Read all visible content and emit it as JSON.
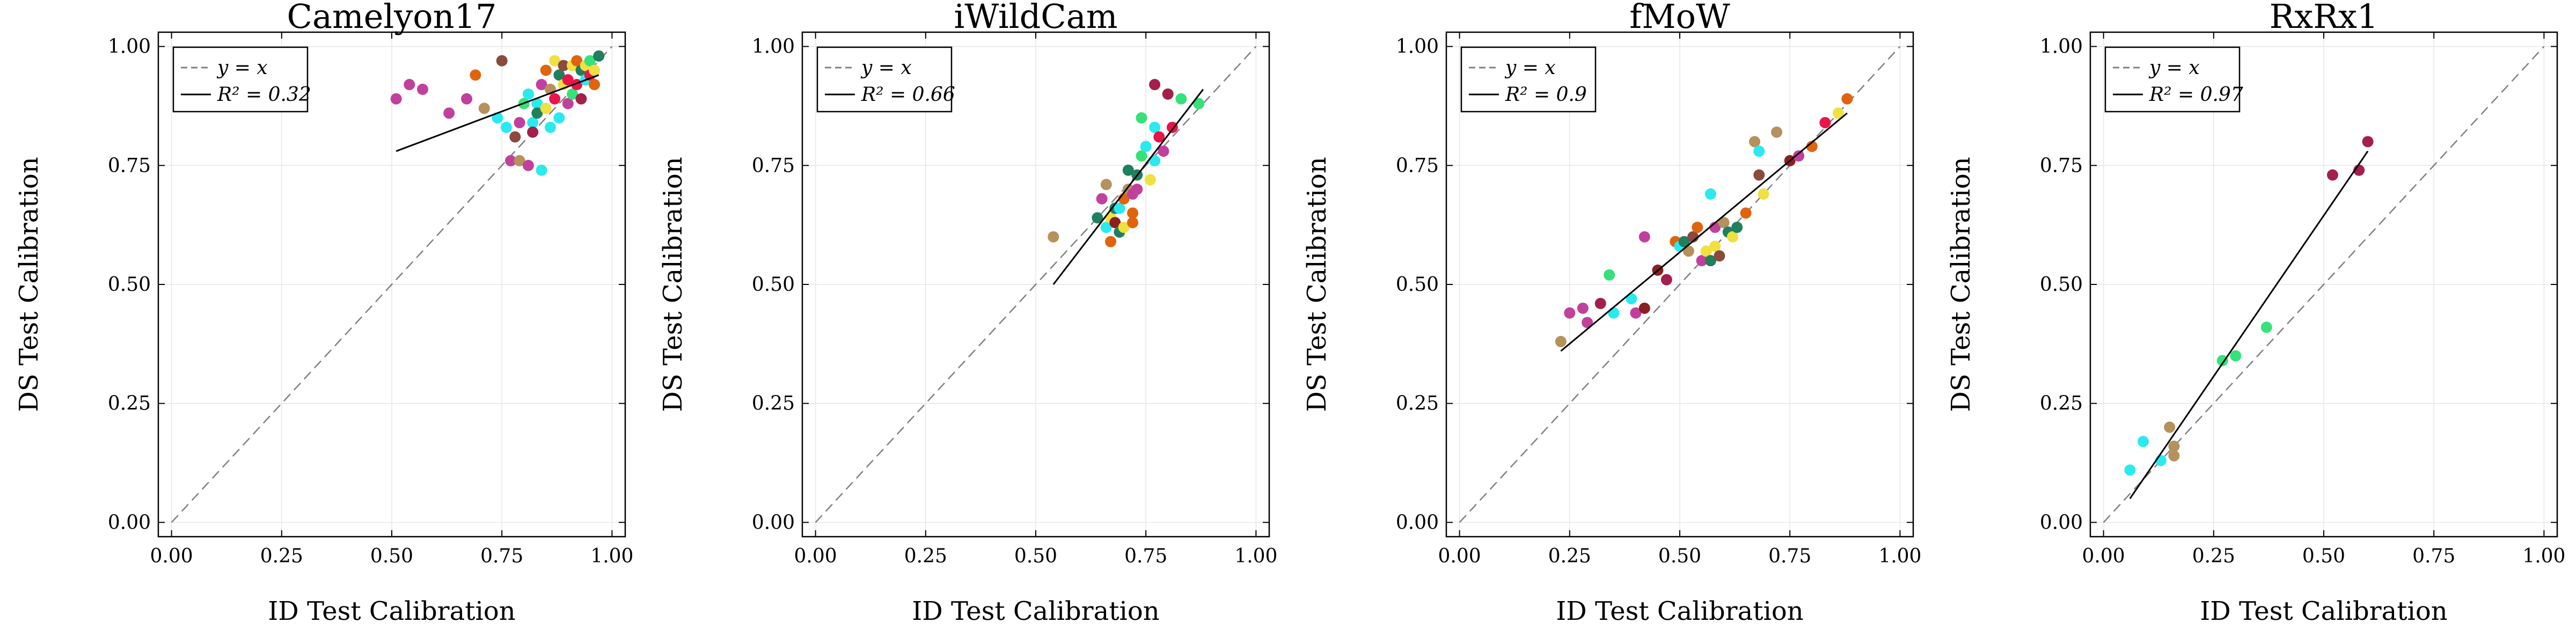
{
  "chart_data": [
    {
      "type": "scatter",
      "title": "Camelyon17",
      "xlabel": "ID Test Calibration",
      "ylabel": "DS Test Calibration",
      "xlim": [
        -0.03,
        1.03
      ],
      "ylim": [
        -0.03,
        1.03
      ],
      "xticks": [
        "0.00",
        "0.25",
        "0.50",
        "0.75",
        "1.00"
      ],
      "yticks": [
        "0.00",
        "0.25",
        "0.50",
        "0.75",
        "1.00"
      ],
      "grid": true,
      "legend_position": "top-left",
      "legend": [
        {
          "label": "y = x",
          "style": "dashed",
          "color": "#808080"
        },
        {
          "label": "R² = 0.32",
          "style": "solid",
          "color": "#000000"
        }
      ],
      "reference_line": {
        "x": [
          0,
          1
        ],
        "y": [
          0,
          1
        ]
      },
      "fit_line": {
        "x": [
          0.51,
          0.97
        ],
        "y": [
          0.78,
          0.94
        ]
      },
      "points": [
        {
          "x": 0.51,
          "y": 0.89,
          "color": "#C1409E"
        },
        {
          "x": 0.54,
          "y": 0.92,
          "color": "#C1409E"
        },
        {
          "x": 0.57,
          "y": 0.91,
          "color": "#C1409E"
        },
        {
          "x": 0.63,
          "y": 0.86,
          "color": "#C1409E"
        },
        {
          "x": 0.67,
          "y": 0.89,
          "color": "#C1409E"
        },
        {
          "x": 0.69,
          "y": 0.94,
          "color": "#E0640E"
        },
        {
          "x": 0.71,
          "y": 0.87,
          "color": "#B5915C"
        },
        {
          "x": 0.74,
          "y": 0.85,
          "color": "#2AEAF0"
        },
        {
          "x": 0.75,
          "y": 0.97,
          "color": "#8B4A3C"
        },
        {
          "x": 0.76,
          "y": 0.83,
          "color": "#2AEAF0"
        },
        {
          "x": 0.77,
          "y": 0.76,
          "color": "#C1409E"
        },
        {
          "x": 0.78,
          "y": 0.81,
          "color": "#8B4A3C"
        },
        {
          "x": 0.79,
          "y": 0.84,
          "color": "#C1409E"
        },
        {
          "x": 0.79,
          "y": 0.76,
          "color": "#B5915C"
        },
        {
          "x": 0.8,
          "y": 0.88,
          "color": "#35E27A"
        },
        {
          "x": 0.81,
          "y": 0.75,
          "color": "#C1409E"
        },
        {
          "x": 0.81,
          "y": 0.9,
          "color": "#2AEAF0"
        },
        {
          "x": 0.82,
          "y": 0.84,
          "color": "#2AEAF0"
        },
        {
          "x": 0.82,
          "y": 0.82,
          "color": "#A3204A"
        },
        {
          "x": 0.83,
          "y": 0.88,
          "color": "#2AEAF0"
        },
        {
          "x": 0.83,
          "y": 0.86,
          "color": "#1F7F5E"
        },
        {
          "x": 0.84,
          "y": 0.92,
          "color": "#C1409E"
        },
        {
          "x": 0.84,
          "y": 0.74,
          "color": "#2AEAF0"
        },
        {
          "x": 0.85,
          "y": 0.95,
          "color": "#E0640E"
        },
        {
          "x": 0.85,
          "y": 0.87,
          "color": "#F0E040"
        },
        {
          "x": 0.86,
          "y": 0.83,
          "color": "#2AEAF0"
        },
        {
          "x": 0.86,
          "y": 0.91,
          "color": "#B5915C"
        },
        {
          "x": 0.87,
          "y": 0.97,
          "color": "#F0E040"
        },
        {
          "x": 0.87,
          "y": 0.89,
          "color": "#E8154A"
        },
        {
          "x": 0.88,
          "y": 0.94,
          "color": "#1F7F5E"
        },
        {
          "x": 0.88,
          "y": 0.85,
          "color": "#2AEAF0"
        },
        {
          "x": 0.89,
          "y": 0.92,
          "color": "#F0E040"
        },
        {
          "x": 0.89,
          "y": 0.96,
          "color": "#8B4A3C"
        },
        {
          "x": 0.9,
          "y": 0.88,
          "color": "#C1409E"
        },
        {
          "x": 0.9,
          "y": 0.93,
          "color": "#E8154A"
        },
        {
          "x": 0.91,
          "y": 0.96,
          "color": "#F0E040"
        },
        {
          "x": 0.91,
          "y": 0.9,
          "color": "#35E27A"
        },
        {
          "x": 0.92,
          "y": 0.97,
          "color": "#E0640E"
        },
        {
          "x": 0.92,
          "y": 0.92,
          "color": "#E8154A"
        },
        {
          "x": 0.93,
          "y": 0.95,
          "color": "#1F7F5E"
        },
        {
          "x": 0.93,
          "y": 0.89,
          "color": "#A3204A"
        },
        {
          "x": 0.94,
          "y": 0.96,
          "color": "#F0E040"
        },
        {
          "x": 0.94,
          "y": 0.93,
          "color": "#2AEAF0"
        },
        {
          "x": 0.95,
          "y": 0.97,
          "color": "#35E27A"
        },
        {
          "x": 0.95,
          "y": 0.94,
          "color": "#E8154A"
        },
        {
          "x": 0.96,
          "y": 0.95,
          "color": "#F0E040"
        },
        {
          "x": 0.96,
          "y": 0.92,
          "color": "#E0640E"
        },
        {
          "x": 0.97,
          "y": 0.98,
          "color": "#1F7F5E"
        }
      ]
    },
    {
      "type": "scatter",
      "title": "iWildCam",
      "xlabel": "ID Test Calibration",
      "ylabel": "DS Test Calibration",
      "xlim": [
        -0.03,
        1.03
      ],
      "ylim": [
        -0.03,
        1.03
      ],
      "xticks": [
        "0.00",
        "0.25",
        "0.50",
        "0.75",
        "1.00"
      ],
      "yticks": [
        "0.00",
        "0.25",
        "0.50",
        "0.75",
        "1.00"
      ],
      "grid": true,
      "legend_position": "top-left",
      "legend": [
        {
          "label": "y = x",
          "style": "dashed",
          "color": "#808080"
        },
        {
          "label": "R² = 0.66",
          "style": "solid",
          "color": "#000000"
        }
      ],
      "reference_line": {
        "x": [
          0,
          1
        ],
        "y": [
          0,
          1
        ]
      },
      "fit_line": {
        "x": [
          0.54,
          0.88
        ],
        "y": [
          0.5,
          0.91
        ]
      },
      "points": [
        {
          "x": 0.54,
          "y": 0.6,
          "color": "#B5915C"
        },
        {
          "x": 0.64,
          "y": 0.64,
          "color": "#1F7F5E"
        },
        {
          "x": 0.65,
          "y": 0.68,
          "color": "#C1409E"
        },
        {
          "x": 0.66,
          "y": 0.71,
          "color": "#B5915C"
        },
        {
          "x": 0.66,
          "y": 0.62,
          "color": "#2AEAF0"
        },
        {
          "x": 0.67,
          "y": 0.59,
          "color": "#E0640E"
        },
        {
          "x": 0.67,
          "y": 0.64,
          "color": "#F0E040"
        },
        {
          "x": 0.68,
          "y": 0.66,
          "color": "#1F7F5E"
        },
        {
          "x": 0.68,
          "y": 0.63,
          "color": "#8B2020"
        },
        {
          "x": 0.69,
          "y": 0.61,
          "color": "#1F7F5E"
        },
        {
          "x": 0.69,
          "y": 0.66,
          "color": "#2AEAF0"
        },
        {
          "x": 0.7,
          "y": 0.68,
          "color": "#E0640E"
        },
        {
          "x": 0.7,
          "y": 0.62,
          "color": "#F0E040"
        },
        {
          "x": 0.71,
          "y": 0.7,
          "color": "#B5915C"
        },
        {
          "x": 0.71,
          "y": 0.74,
          "color": "#1F7F5E"
        },
        {
          "x": 0.72,
          "y": 0.65,
          "color": "#E0640E"
        },
        {
          "x": 0.72,
          "y": 0.69,
          "color": "#C1409E"
        },
        {
          "x": 0.72,
          "y": 0.63,
          "color": "#E0640E"
        },
        {
          "x": 0.73,
          "y": 0.73,
          "color": "#1F7F5E"
        },
        {
          "x": 0.73,
          "y": 0.7,
          "color": "#C1409E"
        },
        {
          "x": 0.74,
          "y": 0.85,
          "color": "#35E27A"
        },
        {
          "x": 0.74,
          "y": 0.77,
          "color": "#35E27A"
        },
        {
          "x": 0.75,
          "y": 0.79,
          "color": "#2AEAF0"
        },
        {
          "x": 0.76,
          "y": 0.72,
          "color": "#F0E040"
        },
        {
          "x": 0.77,
          "y": 0.92,
          "color": "#A3204A"
        },
        {
          "x": 0.77,
          "y": 0.83,
          "color": "#2AEAF0"
        },
        {
          "x": 0.77,
          "y": 0.76,
          "color": "#2AEAF0"
        },
        {
          "x": 0.78,
          "y": 0.81,
          "color": "#E8154A"
        },
        {
          "x": 0.79,
          "y": 0.78,
          "color": "#C1409E"
        },
        {
          "x": 0.8,
          "y": 0.9,
          "color": "#A3204A"
        },
        {
          "x": 0.81,
          "y": 0.83,
          "color": "#E8154A"
        },
        {
          "x": 0.83,
          "y": 0.89,
          "color": "#35E27A"
        },
        {
          "x": 0.87,
          "y": 0.88,
          "color": "#35E27A"
        }
      ]
    },
    {
      "type": "scatter",
      "title": "fMoW",
      "xlabel": "ID Test Calibration",
      "ylabel": "DS Test Calibration",
      "xlim": [
        -0.03,
        1.03
      ],
      "ylim": [
        -0.03,
        1.03
      ],
      "xticks": [
        "0.00",
        "0.25",
        "0.50",
        "0.75",
        "1.00"
      ],
      "yticks": [
        "0.00",
        "0.25",
        "0.50",
        "0.75",
        "1.00"
      ],
      "grid": true,
      "legend_position": "top-left",
      "legend": [
        {
          "label": "y = x",
          "style": "dashed",
          "color": "#808080"
        },
        {
          "label": "R² = 0.9",
          "style": "solid",
          "color": "#000000"
        }
      ],
      "reference_line": {
        "x": [
          0,
          1
        ],
        "y": [
          0,
          1
        ]
      },
      "fit_line": {
        "x": [
          0.23,
          0.88
        ],
        "y": [
          0.36,
          0.86
        ]
      },
      "points": [
        {
          "x": 0.23,
          "y": 0.38,
          "color": "#B5915C"
        },
        {
          "x": 0.25,
          "y": 0.44,
          "color": "#C1409E"
        },
        {
          "x": 0.28,
          "y": 0.45,
          "color": "#C1409E"
        },
        {
          "x": 0.29,
          "y": 0.42,
          "color": "#C1409E"
        },
        {
          "x": 0.32,
          "y": 0.46,
          "color": "#A3204A"
        },
        {
          "x": 0.34,
          "y": 0.52,
          "color": "#35E27A"
        },
        {
          "x": 0.35,
          "y": 0.44,
          "color": "#2AEAF0"
        },
        {
          "x": 0.39,
          "y": 0.47,
          "color": "#2AEAF0"
        },
        {
          "x": 0.4,
          "y": 0.44,
          "color": "#C1409E"
        },
        {
          "x": 0.42,
          "y": 0.45,
          "color": "#8B2020"
        },
        {
          "x": 0.42,
          "y": 0.6,
          "color": "#C1409E"
        },
        {
          "x": 0.45,
          "y": 0.53,
          "color": "#8B2020"
        },
        {
          "x": 0.47,
          "y": 0.51,
          "color": "#A3204A"
        },
        {
          "x": 0.49,
          "y": 0.59,
          "color": "#E0640E"
        },
        {
          "x": 0.5,
          "y": 0.58,
          "color": "#2AEAF0"
        },
        {
          "x": 0.51,
          "y": 0.59,
          "color": "#1F7F5E"
        },
        {
          "x": 0.52,
          "y": 0.57,
          "color": "#B5915C"
        },
        {
          "x": 0.53,
          "y": 0.6,
          "color": "#8B4A3C"
        },
        {
          "x": 0.54,
          "y": 0.62,
          "color": "#E0640E"
        },
        {
          "x": 0.55,
          "y": 0.55,
          "color": "#C1409E"
        },
        {
          "x": 0.56,
          "y": 0.57,
          "color": "#F0E040"
        },
        {
          "x": 0.57,
          "y": 0.55,
          "color": "#1F7F5E"
        },
        {
          "x": 0.57,
          "y": 0.69,
          "color": "#2AEAF0"
        },
        {
          "x": 0.58,
          "y": 0.62,
          "color": "#C1409E"
        },
        {
          "x": 0.58,
          "y": 0.58,
          "color": "#F0E040"
        },
        {
          "x": 0.59,
          "y": 0.56,
          "color": "#8B4A3C"
        },
        {
          "x": 0.6,
          "y": 0.63,
          "color": "#B5915C"
        },
        {
          "x": 0.61,
          "y": 0.61,
          "color": "#1F7F5E"
        },
        {
          "x": 0.62,
          "y": 0.6,
          "color": "#F0E040"
        },
        {
          "x": 0.63,
          "y": 0.62,
          "color": "#1F7F5E"
        },
        {
          "x": 0.65,
          "y": 0.65,
          "color": "#E0640E"
        },
        {
          "x": 0.67,
          "y": 0.8,
          "color": "#B5915C"
        },
        {
          "x": 0.68,
          "y": 0.78,
          "color": "#2AEAF0"
        },
        {
          "x": 0.68,
          "y": 0.73,
          "color": "#8B4A3C"
        },
        {
          "x": 0.69,
          "y": 0.69,
          "color": "#F0E040"
        },
        {
          "x": 0.72,
          "y": 0.82,
          "color": "#B5915C"
        },
        {
          "x": 0.75,
          "y": 0.76,
          "color": "#8B2020"
        },
        {
          "x": 0.77,
          "y": 0.77,
          "color": "#C1409E"
        },
        {
          "x": 0.8,
          "y": 0.79,
          "color": "#E0640E"
        },
        {
          "x": 0.83,
          "y": 0.84,
          "color": "#E8154A"
        },
        {
          "x": 0.86,
          "y": 0.86,
          "color": "#F0E040"
        },
        {
          "x": 0.88,
          "y": 0.89,
          "color": "#E0640E"
        }
      ]
    },
    {
      "type": "scatter",
      "title": "RxRx1",
      "xlabel": "ID Test Calibration",
      "ylabel": "DS Test Calibration",
      "xlim": [
        -0.03,
        1.03
      ],
      "ylim": [
        -0.03,
        1.03
      ],
      "xticks": [
        "0.00",
        "0.25",
        "0.50",
        "0.75",
        "1.00"
      ],
      "yticks": [
        "0.00",
        "0.25",
        "0.50",
        "0.75",
        "1.00"
      ],
      "grid": true,
      "legend_position": "top-left",
      "legend": [
        {
          "label": "y = x",
          "style": "dashed",
          "color": "#808080"
        },
        {
          "label": "R² = 0.97",
          "style": "solid",
          "color": "#000000"
        }
      ],
      "reference_line": {
        "x": [
          0,
          1
        ],
        "y": [
          0,
          1
        ]
      },
      "fit_line": {
        "x": [
          0.06,
          0.6
        ],
        "y": [
          0.05,
          0.78
        ]
      },
      "points": [
        {
          "x": 0.06,
          "y": 0.11,
          "color": "#2AEAF0"
        },
        {
          "x": 0.09,
          "y": 0.17,
          "color": "#2AEAF0"
        },
        {
          "x": 0.13,
          "y": 0.13,
          "color": "#2AEAF0"
        },
        {
          "x": 0.15,
          "y": 0.2,
          "color": "#B5915C"
        },
        {
          "x": 0.16,
          "y": 0.16,
          "color": "#B5915C"
        },
        {
          "x": 0.16,
          "y": 0.14,
          "color": "#B5915C"
        },
        {
          "x": 0.27,
          "y": 0.34,
          "color": "#35E27A"
        },
        {
          "x": 0.3,
          "y": 0.35,
          "color": "#35E27A"
        },
        {
          "x": 0.37,
          "y": 0.41,
          "color": "#35E27A"
        },
        {
          "x": 0.52,
          "y": 0.73,
          "color": "#A3204A"
        },
        {
          "x": 0.58,
          "y": 0.74,
          "color": "#A3204A"
        },
        {
          "x": 0.6,
          "y": 0.8,
          "color": "#A3204A"
        }
      ]
    }
  ]
}
